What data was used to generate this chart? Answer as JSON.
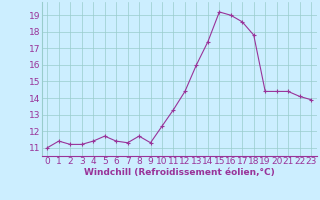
{
  "x": [
    0,
    1,
    2,
    3,
    4,
    5,
    6,
    7,
    8,
    9,
    10,
    11,
    12,
    13,
    14,
    15,
    16,
    17,
    18,
    19,
    20,
    21,
    22,
    23
  ],
  "y": [
    11.0,
    11.4,
    11.2,
    11.2,
    11.4,
    11.7,
    11.4,
    11.3,
    11.7,
    11.3,
    12.3,
    13.3,
    14.4,
    16.0,
    17.4,
    19.2,
    19.0,
    18.6,
    17.8,
    14.4,
    14.4,
    14.4,
    14.1,
    13.9
  ],
  "line_color": "#993399",
  "marker": "+",
  "bg_color": "#cceeff",
  "grid_color": "#99cccc",
  "xlabel": "Windchill (Refroidissement éolien,°C)",
  "yticks": [
    11,
    12,
    13,
    14,
    15,
    16,
    17,
    18,
    19
  ],
  "xticks": [
    0,
    1,
    2,
    3,
    4,
    5,
    6,
    7,
    8,
    9,
    10,
    11,
    12,
    13,
    14,
    15,
    16,
    17,
    18,
    19,
    20,
    21,
    22,
    23
  ],
  "ylim": [
    10.5,
    19.8
  ],
  "xlim": [
    -0.5,
    23.5
  ],
  "axis_color": "#993399",
  "xlabel_fontsize": 6.5,
  "tick_fontsize": 6.5
}
